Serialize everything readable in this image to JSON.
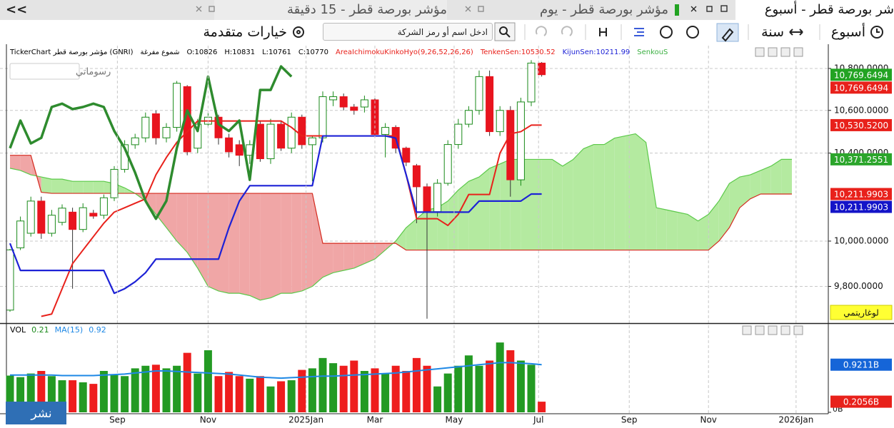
{
  "collapse": "<<",
  "tabs": [
    {
      "label": "شر بورصة قطر - أسبوع"
    },
    {
      "label": "مؤشر بورصة قطر - يوم"
    },
    {
      "label": "مؤشر بورصة قطر - 15 دقيقة"
    }
  ],
  "toolbar": {
    "period": "أسبوع",
    "range": "سنة",
    "search_placeholder": "ادخل اسم أو رمز الشركة",
    "advanced": "خيارات متقدمة"
  },
  "drawings_button": "رسوماتي",
  "log_button": "لوغاريتمي",
  "publish_button": "نشر",
  "chart_data": {
    "type": "candlestick",
    "info": [
      {
        "text": "TickerChart مؤشر بورصة قطر (GNRI)",
        "color": "#000000"
      },
      {
        "text": "شموع مفرغة",
        "color": "#000000"
      },
      {
        "text": "O:10826",
        "color": "#000000"
      },
      {
        "text": "H:10831",
        "color": "#000000"
      },
      {
        "text": "L:10761",
        "color": "#000000"
      },
      {
        "text": "C:10770",
        "color": "#000000"
      },
      {
        "text": "AreaIchimokuKinkoHyo(9,26,52,26,26)",
        "color": "#e8211b"
      },
      {
        "text": "TenkenSen:10530.52",
        "color": "#e8211b"
      },
      {
        "text": "KijunSen:10211.99",
        "color": "#1d22d6"
      },
      {
        "text": "SenkouS",
        "color": "#3cb043"
      }
    ],
    "categories": [
      null,
      null,
      null,
      null,
      null,
      null,
      null,
      null,
      null,
      null,
      null,
      null,
      null,
      null,
      null,
      null,
      null,
      null,
      null,
      null,
      null,
      null,
      null,
      null,
      null,
      null,
      null,
      null,
      null,
      null,
      null,
      null,
      null,
      null,
      null,
      null,
      null,
      null,
      null,
      null,
      null,
      null,
      null,
      null,
      null,
      null,
      null,
      null,
      null,
      null,
      null,
      null
    ],
    "open": [
      9697,
      9970,
      10035,
      10180,
      10035,
      10084,
      10130,
      10052,
      10125,
      10116,
      10195,
      10325,
      10439,
      10471,
      10584,
      10471,
      10520,
      10713,
      10423,
      10535,
      10568,
      10471,
      10439,
      10390,
      10535,
      10374,
      10535,
      10423,
      10568,
      10439,
      10471,
      10650,
      10665,
      10616,
      10616,
      10650,
      10487,
      10520,
      10423,
      10342,
      10245,
      10132,
      10261,
      10440,
      10535,
      10600,
      10761,
      10500,
      10600,
      10277,
      10640,
      10826
    ],
    "high": [
      9965,
      10110,
      10200,
      10200,
      10140,
      10165,
      10150,
      10170,
      10140,
      10210,
      10340,
      10460,
      10490,
      10590,
      10600,
      10540,
      10740,
      10720,
      10560,
      10590,
      10580,
      10490,
      10460,
      10460,
      10550,
      10560,
      10550,
      10590,
      10580,
      10480,
      10690,
      10690,
      10680,
      10630,
      10670,
      10665,
      10540,
      10530,
      10430,
      10350,
      10260,
      10280,
      10460,
      10560,
      10620,
      10790,
      10790,
      10620,
      10620,
      10660,
      10840,
      10831
    ],
    "low": [
      9690,
      9960,
      10020,
      10010,
      10020,
      10070,
      9790,
      10040,
      10100,
      10100,
      10180,
      10310,
      10420,
      10450,
      10440,
      10450,
      10500,
      10390,
      10400,
      10520,
      10440,
      10380,
      10340,
      10350,
      10360,
      10350,
      10410,
      10400,
      10420,
      10270,
      10450,
      10620,
      10600,
      10580,
      10590,
      10470,
      10380,
      10400,
      10340,
      10080,
      9660,
      10110,
      10250,
      10420,
      10520,
      10580,
      10480,
      10480,
      10200,
      10250,
      10620,
      10761
    ],
    "close": [
      9961,
      10090,
      10180,
      10035,
      10116,
      10148,
      10052,
      10150,
      10112,
      10195,
      10325,
      10439,
      10471,
      10568,
      10471,
      10520,
      10729,
      10406,
      10535,
      10568,
      10471,
      10406,
      10390,
      10439,
      10374,
      10535,
      10423,
      10568,
      10439,
      10471,
      10665,
      10665,
      10616,
      10600,
      10650,
      10487,
      10520,
      10423,
      10358,
      10245,
      10132,
      10261,
      10440,
      10535,
      10600,
      10761,
      10500,
      10600,
      10277,
      10640,
      10826,
      10770
    ],
    "up_color": "#1a8a1a",
    "down_color": "#e8141e",
    "ichimoku": {
      "tenkan": {
        "color": "#e8211b",
        "values": [
          null,
          null,
          null,
          9670,
          9680,
          9790,
          9900,
          9960,
          10020,
          10080,
          10130,
          10150,
          10170,
          10190,
          10300,
          10380,
          10450,
          10500,
          10550,
          10550,
          10550,
          10550,
          10550,
          10550,
          10550,
          10550,
          10550,
          10520,
          10480,
          10480,
          10480,
          10480,
          10480,
          10480,
          10480,
          10480,
          10480,
          10480,
          10300,
          10100,
          10100,
          10100,
          10070,
          10120,
          10210,
          10210,
          10210,
          10400,
          10490,
          10500,
          10530.52,
          10530.52
        ]
      },
      "kijun": {
        "color": "#1d22d6",
        "values": [
          9990,
          9870,
          9870,
          9870,
          9870,
          9870,
          9870,
          9870,
          9870,
          9870,
          9770,
          9790,
          9820,
          9860,
          9920,
          9920,
          9920,
          9920,
          9920,
          9920,
          9920,
          10060,
          10180,
          10250,
          10250,
          10250,
          10250,
          10250,
          10250,
          10250,
          10480,
          10480,
          10480,
          10480,
          10480,
          10480,
          10480,
          10470,
          10300,
          10130,
          10130,
          10130,
          10130,
          10130,
          10130,
          10180,
          10180,
          10180,
          10180,
          10180,
          10211.99,
          10211.99
        ]
      },
      "chikou": {
        "color": "#2e8b2e",
        "values": [
          10423,
          10552,
          10445,
          10471,
          10616,
          10632,
          10606,
          10616,
          10632,
          10616,
          10503,
          10423,
          10310,
          10181,
          10100,
          10181,
          10423,
          10600,
          10503,
          10761,
          10535,
          10503,
          10552,
          10277,
          10697,
          10697,
          10810,
          10761
        ]
      },
      "senkou_a": {
        "color": "#5cc94a",
        "values": [
          10330,
          10320,
          10300,
          10290,
          10280,
          10280,
          10270,
          10270,
          10270,
          10270,
          10260,
          10240,
          10215,
          10180,
          10120,
          10060,
          10000,
          9950,
          9880,
          9800,
          9780,
          9770,
          9770,
          9760,
          9740,
          9750,
          9770,
          9770,
          9780,
          9800,
          9840,
          9860,
          9870,
          9880,
          9900,
          9920,
          9960,
          10000,
          10060,
          10100,
          10140,
          10150,
          10180,
          10230,
          10270,
          10290,
          10330,
          10350,
          10371,
          10371,
          10371,
          10371,
          10371,
          10340,
          10370,
          10420,
          10440,
          10440,
          10470,
          10480,
          10490,
          10450,
          10150,
          10140,
          10130,
          10120,
          10090,
          10120,
          10180,
          10260,
          10290,
          10300,
          10320,
          10340,
          10371.2551,
          10371.2551
        ]
      },
      "senkou_b": {
        "color": "#d42a1e",
        "values": [
          10390,
          10390,
          10390,
          10220,
          10215,
          10215,
          10215,
          10215,
          10215,
          10215,
          10215,
          10215,
          10215,
          10215,
          10215,
          10215,
          10215,
          10215,
          10215,
          10215,
          10215,
          10215,
          10215,
          10215,
          10215,
          10215,
          10215,
          10215,
          10215,
          10215,
          9990,
          9990,
          9990,
          9990,
          9990,
          9990,
          9990,
          9990,
          9960,
          9960,
          9960,
          9960,
          9960,
          9960,
          9960,
          9960,
          9960,
          9960,
          9960,
          9960,
          9960,
          9960,
          9960,
          9960,
          9960,
          9960,
          9960,
          9960,
          9960,
          9960,
          9960,
          9960,
          9960,
          9960,
          9960,
          9960,
          9960,
          9960,
          10000,
          10060,
          10150,
          10190,
          10211.9903,
          10211.9903,
          10211.9903,
          10211.9903
        ]
      },
      "cloud_up_color": "#b4eaa0",
      "cloud_down_color": "#f0a6a6"
    },
    "log_scale": true,
    "grid": true,
    "ylim": [
      9650,
      10900
    ],
    "yticks": [
      {
        "value": 9800,
        "label": "9,800.0000"
      },
      {
        "value": 10000,
        "label": "10,000.0000"
      },
      {
        "value": 10400,
        "label": "10,400.0000"
      },
      {
        "value": 10600,
        "label": "10,600.0000"
      },
      {
        "value": 10800,
        "label": "10,800.0000"
      }
    ],
    "xticks": [
      {
        "value": 10.3,
        "label": "Sep"
      },
      {
        "value": 19.0,
        "label": "Nov"
      },
      {
        "value": 28.4,
        "label": "2025Jan"
      },
      {
        "value": 35.0,
        "label": "Mar"
      },
      {
        "value": 42.6,
        "label": "May"
      },
      {
        "value": 50.7,
        "label": "Jul"
      },
      {
        "value": 59.4,
        "label": "Sep"
      },
      {
        "value": 67.0,
        "label": "Nov"
      },
      {
        "value": 75.4,
        "label": "2026Jan"
      }
    ],
    "price_badges": [
      {
        "value": 10769.6494,
        "label": "10,769.6494",
        "color": "#22a322"
      },
      {
        "value": 10769.6494,
        "label": "10,769.6494",
        "color": "#e8211b"
      },
      {
        "value": 10530.52,
        "label": "10,530.5200",
        "color": "#e8211b"
      },
      {
        "value": 10371.2551,
        "label": "10,371.2551",
        "color": "#2ba52b"
      },
      {
        "value": 10211.9903,
        "label": "10,211.9903",
        "color": "#e8211b"
      },
      {
        "value": 10211.9903,
        "label": "10,211.9903",
        "color": "#1414c8"
      }
    ],
    "volume": {
      "header": [
        {
          "text": "VOL",
          "color": "#000000"
        },
        {
          "text": 0.21,
          "color": "#1a8a1a"
        },
        {
          "text": "MA(15)",
          "color": "#1e88e5"
        },
        {
          "text": 0.92,
          "color": "#1e88e5"
        }
      ],
      "values": [
        0.71,
        0.68,
        0.75,
        0.8,
        0.7,
        0.62,
        0.62,
        0.58,
        0.55,
        0.8,
        0.72,
        0.7,
        0.85,
        0.9,
        0.92,
        0.85,
        0.9,
        1.15,
        0.75,
        1.2,
        0.7,
        0.78,
        0.7,
        0.65,
        0.7,
        0.5,
        0.6,
        0.62,
        0.82,
        0.85,
        1.05,
        0.95,
        0.9,
        1.0,
        0.8,
        0.85,
        0.75,
        0.9,
        0.8,
        1.05,
        0.9,
        0.5,
        0.75,
        0.9,
        1.1,
        0.9,
        1.0,
        1.35,
        1.2,
        1.0,
        0.92,
        0.2056
      ],
      "ma_values": [
        0.72,
        0.72,
        0.72,
        0.72,
        0.72,
        0.71,
        0.71,
        0.71,
        0.71,
        0.72,
        0.73,
        0.74,
        0.76,
        0.78,
        0.8,
        0.8,
        0.79,
        0.78,
        0.77,
        0.76,
        0.75,
        0.74,
        0.72,
        0.7,
        0.68,
        0.67,
        0.66,
        0.67,
        0.68,
        0.69,
        0.7,
        0.7,
        0.71,
        0.72,
        0.73,
        0.74,
        0.75,
        0.76,
        0.78,
        0.8,
        0.82,
        0.84,
        0.86,
        0.88,
        0.9,
        0.92,
        0.94,
        0.96,
        0.96,
        0.95,
        0.94,
        0.9211
      ],
      "ma_color": "#1e88e5",
      "ylim": [
        0,
        1.6
      ],
      "yticks": [
        {
          "value": 0,
          "label": "0B"
        }
      ],
      "badges": [
        {
          "value": 0.9211,
          "label": "0.9211B",
          "color": "#1565d8"
        },
        {
          "value": 0.2056,
          "label": "0.2056B",
          "color": "#e8211b"
        }
      ]
    }
  }
}
